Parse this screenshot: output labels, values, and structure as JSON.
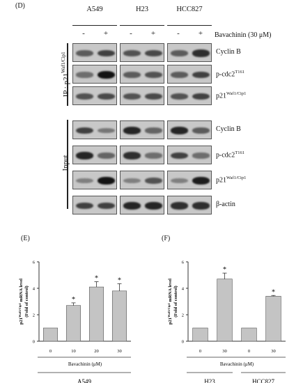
{
  "panel_d": {
    "label": "(D)",
    "cell_lines": [
      "A549",
      "H23",
      "HCC827"
    ],
    "lane_signs": [
      "-",
      "+"
    ],
    "treatment": "Bavachinin (30 μM)",
    "ip_label_prefix": "IP : p21",
    "ip_label_sup": "Waf1/Cip1",
    "input_label": "Input",
    "ip_rows": [
      {
        "name": "Cyclin B",
        "sup": "",
        "intensities": [
          0.55,
          0.7,
          0.6,
          0.65,
          0.55,
          0.8
        ]
      },
      {
        "name": "p-cdc2",
        "sup": "T161",
        "intensities": [
          0.45,
          0.95,
          0.55,
          0.6,
          0.55,
          0.7
        ]
      },
      {
        "name": "p21",
        "sup": "Waf1/Cip1",
        "intensities": [
          0.6,
          0.65,
          0.6,
          0.65,
          0.6,
          0.7
        ]
      }
    ],
    "input_rows": [
      {
        "name": "Cyclin B",
        "sup": "",
        "intensities": [
          0.7,
          0.4,
          0.85,
          0.5,
          0.85,
          0.55
        ]
      },
      {
        "name": "p-cdc2",
        "sup": "T161",
        "intensities": [
          0.85,
          0.5,
          0.8,
          0.45,
          0.7,
          0.45
        ]
      },
      {
        "name": "p21",
        "sup": "Waf1/Cip1",
        "intensities": [
          0.35,
          0.95,
          0.35,
          0.6,
          0.35,
          0.9
        ]
      },
      {
        "name": "β-actin",
        "sup": "",
        "intensities": [
          0.7,
          0.7,
          0.85,
          0.85,
          0.8,
          0.8
        ]
      }
    ]
  },
  "chart_data": [
    {
      "panel": "(E)",
      "type": "bar",
      "categories": [
        "0",
        "10",
        "20",
        "30"
      ],
      "values": [
        1.0,
        2.7,
        4.1,
        3.8
      ],
      "errors": [
        0,
        0.2,
        0.4,
        0.55
      ],
      "significance": [
        "",
        "*",
        "*",
        "*"
      ],
      "ylabel_main": "p21",
      "ylabel_sup": "Waf1/Cip1",
      "ylabel_rest": " mRNA level",
      "ylabel_line2": "(Fold of control)",
      "xlabel": "Bavachinin (μM)",
      "group_labels": [
        "A549"
      ],
      "yticks": [
        "0",
        "2",
        "4",
        "6"
      ],
      "ylim": [
        0,
        6
      ]
    },
    {
      "panel": "(F)",
      "type": "bar",
      "categories": [
        "0",
        "30",
        "0",
        "30"
      ],
      "values": [
        1.0,
        4.7,
        1.0,
        3.4
      ],
      "errors": [
        0,
        0.45,
        0,
        0.06
      ],
      "significance": [
        "",
        "*",
        "",
        "*"
      ],
      "ylabel_main": "p21",
      "ylabel_sup": "Waf1/Cip1",
      "ylabel_rest": " mRNA level",
      "ylabel_line2": "(Fold of control)",
      "xlabel": "Bavachinin (μM)",
      "group_labels": [
        "H23",
        "HCC827"
      ],
      "yticks": [
        "0",
        "2",
        "4",
        "6"
      ],
      "ylim": [
        0,
        6
      ]
    }
  ]
}
